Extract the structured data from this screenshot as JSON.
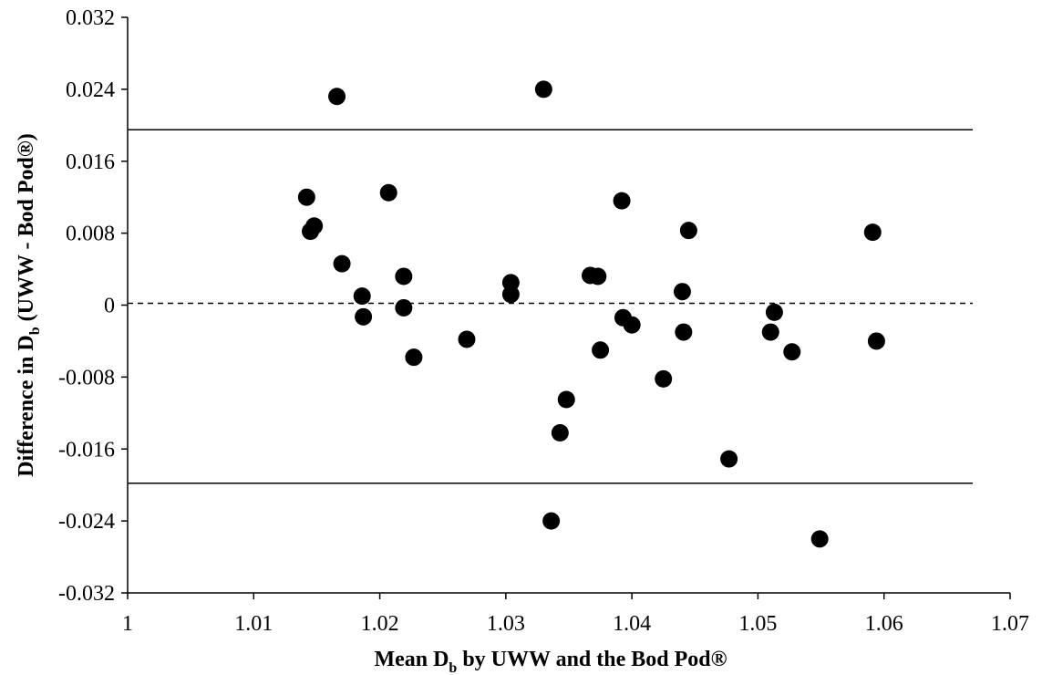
{
  "chart_data": {
    "type": "scatter",
    "xlabel": {
      "main": "Mean D",
      "sub": "b",
      "rest": " by UWW and the Bod Pod®"
    },
    "ylabel": {
      "main": "Difference in D",
      "sub": "b",
      "rest": " (UWW - Bod Pod®)"
    },
    "xlim": [
      1,
      1.07
    ],
    "ylim": [
      -0.032,
      0.032
    ],
    "x_ticks": [
      1,
      1.01,
      1.02,
      1.03,
      1.04,
      1.05,
      1.06,
      1.07
    ],
    "x_tick_labels": [
      "1",
      "1.01",
      "1.02",
      "1.03",
      "1.04",
      "1.05",
      "1.06",
      "1.07"
    ],
    "y_ticks": [
      0.032,
      0.024,
      0.016,
      0.008,
      0,
      -0.008,
      -0.016,
      -0.024,
      -0.032
    ],
    "y_tick_labels": [
      "0.032",
      "0.024",
      "0.016",
      "0.008",
      "0",
      "-0.008",
      "-0.016",
      "-0.024",
      "-0.032"
    ],
    "grid": false,
    "reference_lines": [
      {
        "y": 0.0195,
        "style": "solid"
      },
      {
        "y": 0.0002,
        "style": "dashed"
      },
      {
        "y": -0.0198,
        "style": "solid"
      }
    ],
    "points": [
      {
        "x": 1.0166,
        "y": 0.0232
      },
      {
        "x": 1.033,
        "y": 0.024
      },
      {
        "x": 1.0142,
        "y": 0.012
      },
      {
        "x": 1.0207,
        "y": 0.0125
      },
      {
        "x": 1.0392,
        "y": 0.0116
      },
      {
        "x": 1.0148,
        "y": 0.0088
      },
      {
        "x": 1.0145,
        "y": 0.0082
      },
      {
        "x": 1.0445,
        "y": 0.0083
      },
      {
        "x": 1.0591,
        "y": 0.0081
      },
      {
        "x": 1.017,
        "y": 0.0046
      },
      {
        "x": 1.0219,
        "y": 0.0032
      },
      {
        "x": 1.0367,
        "y": 0.0033
      },
      {
        "x": 1.0373,
        "y": 0.0032
      },
      {
        "x": 1.0304,
        "y": 0.0025
      },
      {
        "x": 1.0304,
        "y": 0.0012
      },
      {
        "x": 1.044,
        "y": 0.0015
      },
      {
        "x": 1.0186,
        "y": 0.001
      },
      {
        "x": 1.0219,
        "y": -0.0003
      },
      {
        "x": 1.0513,
        "y": -0.0008
      },
      {
        "x": 1.0187,
        "y": -0.0013
      },
      {
        "x": 1.0393,
        "y": -0.0014
      },
      {
        "x": 1.04,
        "y": -0.0022
      },
      {
        "x": 1.0441,
        "y": -0.003
      },
      {
        "x": 1.051,
        "y": -0.003
      },
      {
        "x": 1.0269,
        "y": -0.0038
      },
      {
        "x": 1.0594,
        "y": -0.004
      },
      {
        "x": 1.0375,
        "y": -0.005
      },
      {
        "x": 1.0527,
        "y": -0.0052
      },
      {
        "x": 1.0227,
        "y": -0.0058
      },
      {
        "x": 1.0425,
        "y": -0.0082
      },
      {
        "x": 1.0348,
        "y": -0.0105
      },
      {
        "x": 1.0343,
        "y": -0.0142
      },
      {
        "x": 1.0477,
        "y": -0.0171
      },
      {
        "x": 1.0336,
        "y": -0.024
      },
      {
        "x": 1.0549,
        "y": -0.026
      }
    ],
    "marker_color": "#000000"
  }
}
